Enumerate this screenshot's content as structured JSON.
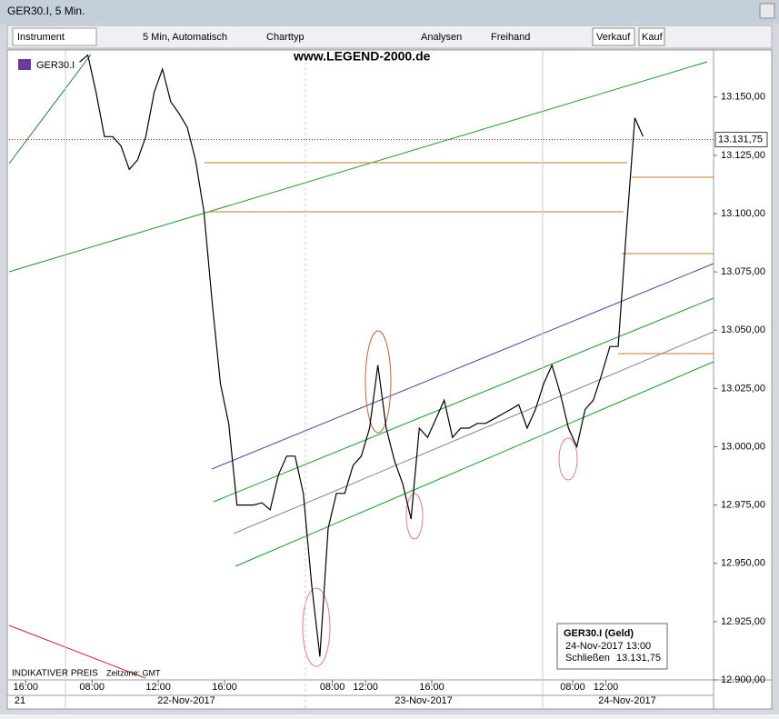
{
  "window": {
    "title": "GER30.I, 5 Min."
  },
  "toolbar": {
    "instrument": "Instrument",
    "interval": "5 Min, Automatisch",
    "chart_type": "Charttyp",
    "analyses": "Analysen",
    "freehand": "Freihand",
    "sell": "Verkauf",
    "buy": "Kauf"
  },
  "chart_data": {
    "type": "line",
    "watermark": "www.LEGEND-2000.de",
    "footnote": "INDIKATIVER PREIS",
    "timezone": "Zeitzone: GMT",
    "categories": [
      null,
      null,
      "16:00",
      null,
      null,
      null,
      null,
      null,
      null,
      null,
      "08:00",
      null,
      null,
      null,
      null,
      null,
      null,
      null,
      "12:00",
      null,
      null,
      null,
      null,
      null,
      null,
      null,
      "16:00",
      null,
      null,
      null,
      null,
      null,
      null,
      null,
      null,
      null,
      null,
      null,
      null,
      "08:00",
      null,
      null,
      null,
      "12:00",
      null,
      null,
      null,
      null,
      null,
      null,
      null,
      "16:00",
      null,
      null,
      null,
      null,
      null,
      null,
      null,
      null,
      null,
      null,
      null,
      null,
      null,
      null,
      null,
      null,
      "08:00",
      null,
      null,
      null,
      "12:00",
      null,
      null,
      null,
      null,
      null,
      null,
      null,
      null,
      null,
      null,
      null,
      null
    ],
    "dates": [
      "21",
      "22-Nov-2017",
      "23-Nov-2017",
      "24-Nov-2017"
    ],
    "series": [
      {
        "name": "GER30.I",
        "color": "#000000",
        "values": [
          null,
          null,
          null,
          null,
          null,
          null,
          null,
          null,
          13165,
          13168,
          13152,
          13133,
          13133,
          13129,
          13119,
          13123,
          13133,
          13152,
          13162,
          13148,
          13143,
          13137,
          13123,
          13101,
          13062,
          13027,
          13010,
          12975,
          12975,
          12975,
          12976,
          12973,
          12988,
          12996,
          12996,
          12980,
          12941,
          12910,
          12965,
          12980,
          12980,
          12992,
          12996,
          13008,
          13035,
          13008,
          12994,
          12984,
          12969,
          13008,
          13004,
          13012,
          13020,
          13004,
          13008,
          13008,
          13010,
          13010,
          13012,
          13014,
          13016,
          13018,
          13008,
          13016,
          13027,
          13035,
          13023,
          13008,
          13000,
          13016,
          13020,
          13031,
          13043,
          13043,
          13094,
          13141,
          13133,
          null,
          null,
          null,
          null,
          null,
          null,
          null,
          null
        ]
      }
    ],
    "ylim": [
      12900,
      13169
    ],
    "yticks": [
      {
        "value": 12900,
        "label": "12.900,00"
      },
      {
        "value": 12925,
        "label": "12.925,00"
      },
      {
        "value": 12950,
        "label": "12.950,00"
      },
      {
        "value": 12975,
        "label": "12.975,00"
      },
      {
        "value": 13000,
        "label": "13.000,00"
      },
      {
        "value": 13025,
        "label": "13.025,00"
      },
      {
        "value": 13050,
        "label": "13.050,00"
      },
      {
        "value": 13075,
        "label": "13.075,00"
      },
      {
        "value": 13100,
        "label": "13.100,00"
      },
      {
        "value": 13125,
        "label": "13.125,00"
      },
      {
        "value": 13150,
        "label": "13.150,00"
      }
    ],
    "last_price": {
      "value": 13131.75,
      "label": "13.131,75"
    },
    "info_box": {
      "title": "GER30.I (Geld)",
      "date": "24-Nov-2017 13:00",
      "close_label": "Schließen",
      "close_value": "13.131,75"
    }
  }
}
